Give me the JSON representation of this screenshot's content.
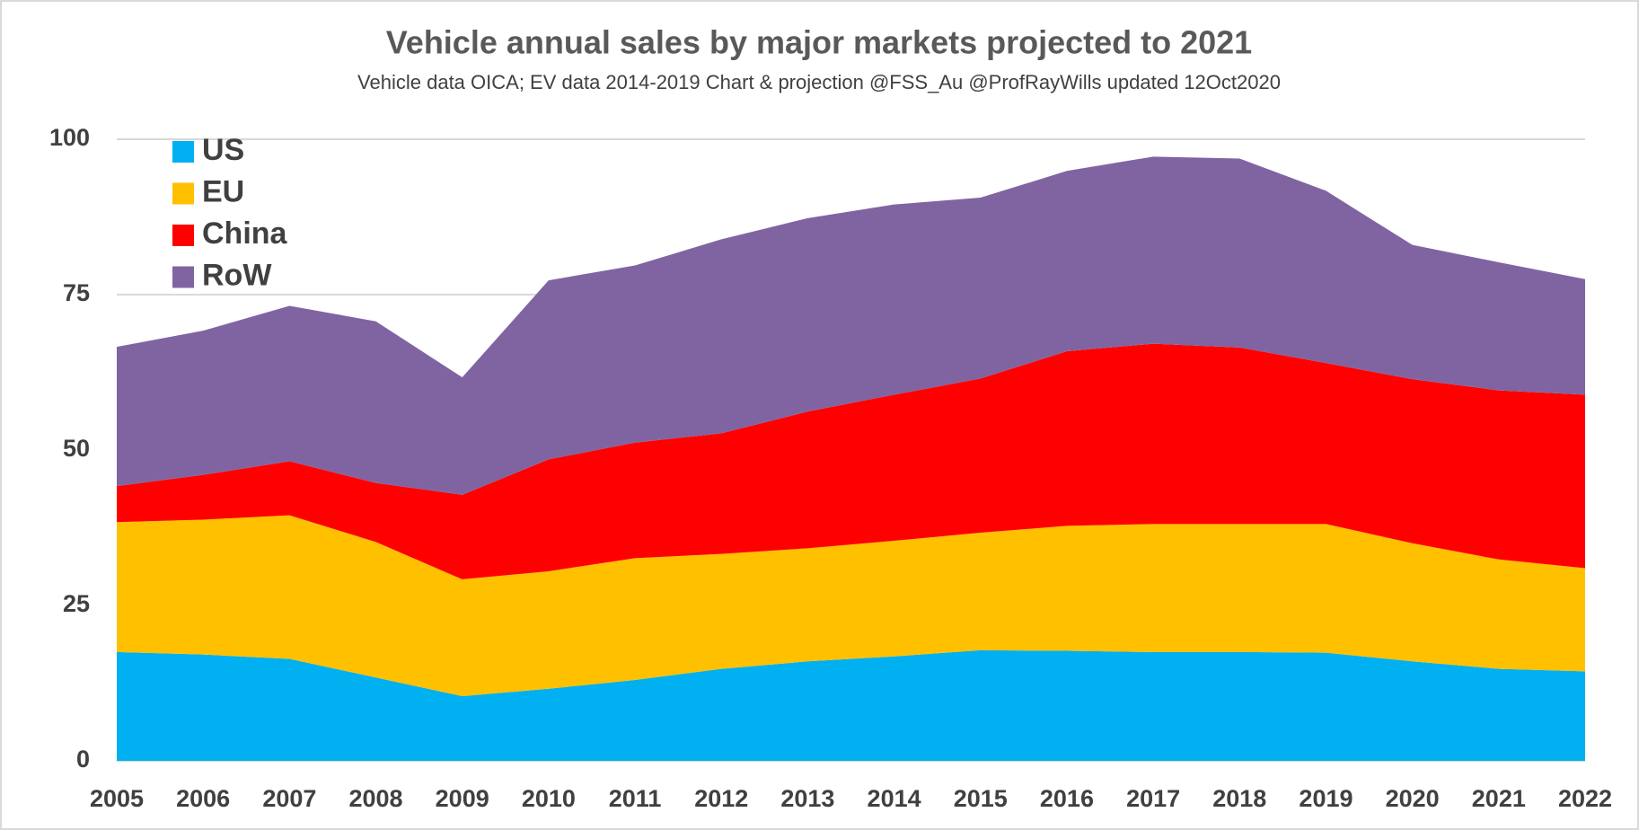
{
  "chart_data": {
    "type": "stacked_area",
    "title": "Vehicle annual sales by major markets projected to 2021",
    "subtitle": "Vehicle data OICA; EV data 2014-2019  Chart & projection @FSS_Au @ProfRayWills updated 12Oct2020",
    "categories": [
      "2005",
      "2006",
      "2007",
      "2008",
      "2009",
      "2010",
      "2011",
      "2012",
      "2013",
      "2014",
      "2015",
      "2016",
      "2017",
      "2018",
      "2019",
      "2020",
      "2021",
      "2022"
    ],
    "series": [
      {
        "name": "US",
        "color": "#00b0f0",
        "values": [
          17.5,
          17.1,
          16.4,
          13.4,
          10.4,
          11.6,
          13.0,
          14.8,
          16.0,
          16.8,
          17.8,
          17.7,
          17.5,
          17.5,
          17.4,
          16.0,
          14.8,
          14.4
        ]
      },
      {
        "name": "EU",
        "color": "#ffc000",
        "values": [
          20.9,
          21.7,
          23.1,
          21.8,
          18.8,
          18.9,
          19.6,
          18.5,
          18.2,
          18.6,
          18.9,
          20.1,
          20.6,
          20.6,
          20.7,
          19.0,
          17.6,
          16.6
        ]
      },
      {
        "name": "China",
        "color": "#ff0000",
        "values": [
          5.8,
          7.2,
          8.7,
          9.5,
          13.6,
          18.0,
          18.6,
          19.4,
          22.0,
          23.5,
          24.8,
          28.1,
          29.0,
          28.4,
          25.9,
          26.4,
          27.2,
          27.9
        ]
      },
      {
        "name": "RoW",
        "color": "#8064a2",
        "values": [
          22.4,
          23.2,
          25.0,
          26.0,
          18.9,
          28.8,
          28.5,
          31.2,
          31.1,
          30.6,
          29.1,
          29.0,
          30.1,
          30.4,
          27.7,
          21.6,
          20.6,
          18.6
        ]
      }
    ],
    "ylim": [
      0,
      100
    ],
    "yticks": [
      0,
      25,
      50,
      75,
      100
    ],
    "grid": true,
    "legend": "top-left"
  }
}
